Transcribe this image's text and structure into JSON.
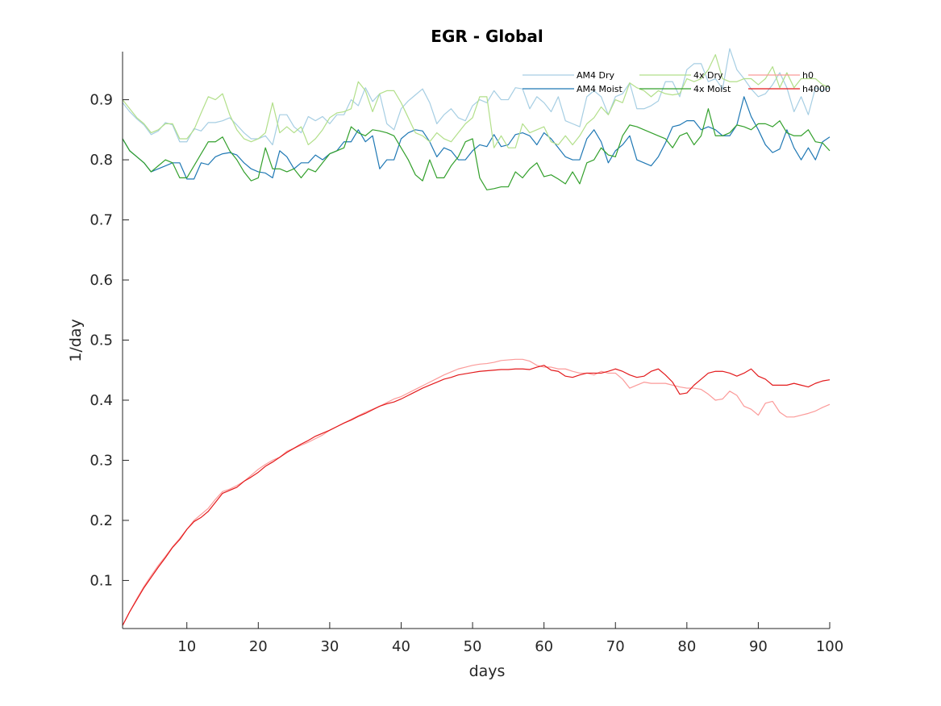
{
  "chart_data": {
    "type": "line",
    "title": "EGR - Global",
    "xlabel": "days",
    "ylabel": "1/day",
    "xlim": [
      1,
      100
    ],
    "ylim": [
      0.02,
      0.98
    ],
    "xticks": [
      10,
      20,
      30,
      40,
      50,
      60,
      70,
      80,
      90,
      100
    ],
    "yticks": [
      0.1,
      0.2,
      0.3,
      0.4,
      0.5,
      0.6,
      0.7,
      0.8,
      0.9
    ],
    "grid": false,
    "legend_position": "top-right",
    "legend_columns": 3,
    "x": [
      1,
      2,
      3,
      4,
      5,
      6,
      7,
      8,
      9,
      10,
      11,
      12,
      13,
      14,
      15,
      16,
      17,
      18,
      19,
      20,
      21,
      22,
      23,
      24,
      25,
      26,
      27,
      28,
      29,
      30,
      31,
      32,
      33,
      34,
      35,
      36,
      37,
      38,
      39,
      40,
      41,
      42,
      43,
      44,
      45,
      46,
      47,
      48,
      49,
      50,
      51,
      52,
      53,
      54,
      55,
      56,
      57,
      58,
      59,
      60,
      61,
      62,
      63,
      64,
      65,
      66,
      67,
      68,
      69,
      70,
      71,
      72,
      73,
      74,
      75,
      76,
      77,
      78,
      79,
      80,
      81,
      82,
      83,
      84,
      85,
      86,
      87,
      88,
      89,
      90,
      91,
      92,
      93,
      94,
      95,
      96,
      97,
      98,
      99,
      100
    ],
    "series": [
      {
        "name": "AM4 Dry",
        "color": "#a6cee3",
        "values": [
          0.895,
          0.88,
          0.868,
          0.858,
          0.842,
          0.848,
          0.862,
          0.858,
          0.83,
          0.83,
          0.852,
          0.848,
          0.862,
          0.862,
          0.865,
          0.87,
          0.858,
          0.845,
          0.835,
          0.835,
          0.84,
          0.825,
          0.875,
          0.875,
          0.855,
          0.845,
          0.872,
          0.865,
          0.872,
          0.86,
          0.875,
          0.875,
          0.9,
          0.89,
          0.92,
          0.897,
          0.91,
          0.86,
          0.85,
          0.885,
          0.898,
          0.908,
          0.918,
          0.895,
          0.86,
          0.875,
          0.885,
          0.87,
          0.865,
          0.89,
          0.9,
          0.895,
          0.915,
          0.9,
          0.9,
          0.92,
          0.918,
          0.885,
          0.905,
          0.895,
          0.88,
          0.905,
          0.865,
          0.86,
          0.855,
          0.905,
          0.915,
          0.905,
          0.875,
          0.905,
          0.91,
          0.928,
          0.885,
          0.885,
          0.89,
          0.898,
          0.93,
          0.93,
          0.905,
          0.95,
          0.96,
          0.96,
          0.93,
          0.935,
          0.918,
          0.985,
          0.95,
          0.935,
          0.918,
          0.905,
          0.91,
          0.925,
          0.945,
          0.92,
          0.88,
          0.905,
          0.875,
          0.92,
          0.915,
          0.92
        ]
      },
      {
        "name": "AM4 Moist",
        "color": "#1f78b4",
        "values": [
          0.835,
          0.815,
          0.805,
          0.795,
          0.78,
          0.785,
          0.79,
          0.795,
          0.795,
          0.768,
          0.768,
          0.795,
          0.792,
          0.805,
          0.81,
          0.812,
          0.808,
          0.795,
          0.785,
          0.78,
          0.778,
          0.77,
          0.815,
          0.805,
          0.785,
          0.795,
          0.795,
          0.808,
          0.8,
          0.81,
          0.815,
          0.83,
          0.83,
          0.85,
          0.83,
          0.84,
          0.785,
          0.8,
          0.8,
          0.835,
          0.845,
          0.85,
          0.848,
          0.83,
          0.805,
          0.82,
          0.815,
          0.8,
          0.8,
          0.815,
          0.825,
          0.822,
          0.842,
          0.822,
          0.825,
          0.842,
          0.845,
          0.84,
          0.825,
          0.845,
          0.835,
          0.82,
          0.805,
          0.8,
          0.8,
          0.835,
          0.85,
          0.83,
          0.795,
          0.815,
          0.825,
          0.84,
          0.8,
          0.795,
          0.79,
          0.805,
          0.828,
          0.855,
          0.858,
          0.865,
          0.865,
          0.85,
          0.855,
          0.85,
          0.84,
          0.84,
          0.858,
          0.905,
          0.872,
          0.85,
          0.825,
          0.812,
          0.818,
          0.85,
          0.82,
          0.8,
          0.82,
          0.8,
          0.83,
          0.838
        ]
      },
      {
        "name": "4x Dry",
        "color": "#b2df8a",
        "values": [
          0.9,
          0.885,
          0.87,
          0.86,
          0.845,
          0.85,
          0.86,
          0.86,
          0.835,
          0.835,
          0.85,
          0.878,
          0.905,
          0.9,
          0.91,
          0.875,
          0.85,
          0.835,
          0.83,
          0.835,
          0.845,
          0.895,
          0.845,
          0.855,
          0.845,
          0.855,
          0.825,
          0.835,
          0.85,
          0.87,
          0.878,
          0.88,
          0.885,
          0.93,
          0.915,
          0.88,
          0.91,
          0.915,
          0.915,
          0.895,
          0.87,
          0.845,
          0.84,
          0.83,
          0.845,
          0.835,
          0.83,
          0.845,
          0.86,
          0.87,
          0.905,
          0.905,
          0.82,
          0.84,
          0.82,
          0.82,
          0.86,
          0.845,
          0.85,
          0.855,
          0.83,
          0.825,
          0.84,
          0.825,
          0.84,
          0.86,
          0.87,
          0.888,
          0.875,
          0.9,
          0.895,
          0.928,
          0.92,
          0.915,
          0.905,
          0.915,
          0.91,
          0.908,
          0.91,
          0.935,
          0.93,
          0.935,
          0.95,
          0.975,
          0.935,
          0.93,
          0.93,
          0.935,
          0.935,
          0.925,
          0.935,
          0.955,
          0.92,
          0.945,
          0.92,
          0.935,
          0.935,
          0.935,
          0.925,
          0.92
        ]
      },
      {
        "name": "4x Moist",
        "color": "#33a02c",
        "values": [
          0.835,
          0.815,
          0.805,
          0.795,
          0.78,
          0.79,
          0.8,
          0.795,
          0.77,
          0.77,
          0.79,
          0.81,
          0.83,
          0.83,
          0.838,
          0.815,
          0.8,
          0.78,
          0.765,
          0.77,
          0.82,
          0.785,
          0.785,
          0.78,
          0.785,
          0.77,
          0.785,
          0.78,
          0.795,
          0.81,
          0.815,
          0.82,
          0.855,
          0.845,
          0.84,
          0.85,
          0.848,
          0.845,
          0.84,
          0.82,
          0.8,
          0.775,
          0.765,
          0.8,
          0.77,
          0.77,
          0.79,
          0.805,
          0.83,
          0.835,
          0.77,
          0.75,
          0.752,
          0.755,
          0.755,
          0.78,
          0.77,
          0.785,
          0.795,
          0.772,
          0.775,
          0.768,
          0.76,
          0.78,
          0.76,
          0.795,
          0.8,
          0.82,
          0.808,
          0.805,
          0.84,
          0.858,
          0.855,
          0.85,
          0.845,
          0.84,
          0.835,
          0.82,
          0.84,
          0.845,
          0.825,
          0.84,
          0.885,
          0.84,
          0.84,
          0.845,
          0.858,
          0.855,
          0.85,
          0.86,
          0.86,
          0.855,
          0.865,
          0.845,
          0.84,
          0.84,
          0.85,
          0.83,
          0.828,
          0.815
        ]
      },
      {
        "name": "h0",
        "color": "#fb9a99",
        "values": [
          0.025,
          0.048,
          0.07,
          0.09,
          0.108,
          0.125,
          0.14,
          0.156,
          0.17,
          0.185,
          0.2,
          0.21,
          0.22,
          0.235,
          0.248,
          0.252,
          0.258,
          0.265,
          0.275,
          0.285,
          0.293,
          0.3,
          0.305,
          0.315,
          0.32,
          0.325,
          0.33,
          0.336,
          0.342,
          0.35,
          0.356,
          0.362,
          0.368,
          0.374,
          0.38,
          0.385,
          0.39,
          0.396,
          0.402,
          0.406,
          0.412,
          0.418,
          0.424,
          0.43,
          0.436,
          0.442,
          0.447,
          0.452,
          0.455,
          0.458,
          0.46,
          0.461,
          0.463,
          0.466,
          0.467,
          0.468,
          0.468,
          0.465,
          0.458,
          0.455,
          0.455,
          0.452,
          0.452,
          0.448,
          0.445,
          0.445,
          0.442,
          0.448,
          0.445,
          0.445,
          0.435,
          0.42,
          0.425,
          0.43,
          0.428,
          0.428,
          0.428,
          0.425,
          0.422,
          0.42,
          0.42,
          0.418,
          0.41,
          0.4,
          0.402,
          0.415,
          0.408,
          0.39,
          0.385,
          0.375,
          0.395,
          0.398,
          0.38,
          0.372,
          0.372,
          0.375,
          0.378,
          0.382,
          0.388,
          0.393
        ]
      },
      {
        "name": "h4000",
        "color": "#e31a1c",
        "values": [
          0.025,
          0.048,
          0.068,
          0.088,
          0.105,
          0.122,
          0.138,
          0.155,
          0.168,
          0.185,
          0.198,
          0.205,
          0.215,
          0.23,
          0.245,
          0.25,
          0.255,
          0.265,
          0.272,
          0.28,
          0.29,
          0.297,
          0.305,
          0.313,
          0.32,
          0.327,
          0.333,
          0.34,
          0.345,
          0.35,
          0.356,
          0.362,
          0.367,
          0.373,
          0.378,
          0.384,
          0.39,
          0.394,
          0.397,
          0.402,
          0.408,
          0.414,
          0.42,
          0.425,
          0.43,
          0.435,
          0.438,
          0.442,
          0.444,
          0.446,
          0.448,
          0.449,
          0.45,
          0.451,
          0.451,
          0.452,
          0.452,
          0.451,
          0.455,
          0.458,
          0.45,
          0.448,
          0.44,
          0.438,
          0.442,
          0.445,
          0.445,
          0.445,
          0.448,
          0.452,
          0.448,
          0.442,
          0.438,
          0.44,
          0.448,
          0.452,
          0.442,
          0.43,
          0.41,
          0.412,
          0.425,
          0.435,
          0.445,
          0.448,
          0.448,
          0.445,
          0.44,
          0.445,
          0.452,
          0.44,
          0.435,
          0.425,
          0.425,
          0.425,
          0.428,
          0.425,
          0.422,
          0.428,
          0.432,
          0.434
        ]
      }
    ]
  }
}
